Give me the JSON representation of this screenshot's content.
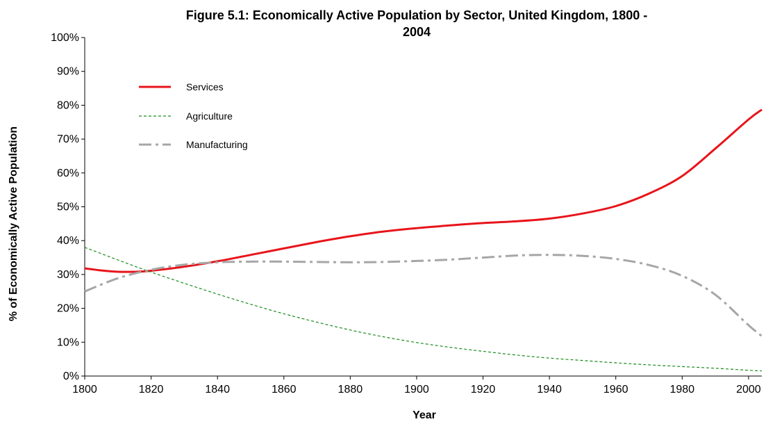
{
  "chart_data": {
    "type": "line",
    "title_line1": "Figure 5.1: Economically Active Population by Sector, United Kingdom, 1800 -",
    "title_line2": "2004",
    "xlabel": "Year",
    "ylabel": "% of Economically Active Population",
    "xlim": [
      1800,
      2004
    ],
    "ylim": [
      0,
      100
    ],
    "x_ticks": [
      1800,
      1820,
      1840,
      1860,
      1880,
      1900,
      1920,
      1940,
      1960,
      1980,
      2000
    ],
    "y_ticks": [
      0,
      10,
      20,
      30,
      40,
      50,
      60,
      70,
      80,
      90,
      100
    ],
    "y_tick_suffix": "%",
    "grid": false,
    "legend_position": "top-left",
    "series": [
      {
        "name": "Services",
        "color": "#e8141b",
        "style": "solid",
        "x": [
          1800,
          1805,
          1810,
          1815,
          1820,
          1830,
          1840,
          1850,
          1860,
          1870,
          1880,
          1890,
          1900,
          1910,
          1920,
          1930,
          1940,
          1950,
          1960,
          1970,
          1980,
          1990,
          2000,
          2004
        ],
        "y": [
          31.8,
          31.2,
          30.8,
          30.8,
          31.1,
          32.3,
          33.9,
          35.8,
          37.7,
          39.6,
          41.3,
          42.7,
          43.7,
          44.5,
          45.2,
          45.7,
          46.5,
          48.0,
          50.2,
          53.9,
          59.1,
          67.2,
          75.8,
          78.7
        ]
      },
      {
        "name": "Agriculture",
        "color": "#1a8a1a",
        "style": "dashed",
        "x": [
          1800,
          1810,
          1820,
          1830,
          1840,
          1850,
          1860,
          1870,
          1880,
          1890,
          1900,
          1910,
          1920,
          1930,
          1940,
          1950,
          1960,
          1970,
          1980,
          1990,
          2000,
          2004
        ],
        "y": [
          38.0,
          34.3,
          30.7,
          27.4,
          24.2,
          21.2,
          18.4,
          15.9,
          13.6,
          11.6,
          9.9,
          8.5,
          7.3,
          6.2,
          5.3,
          4.6,
          3.9,
          3.3,
          2.8,
          2.3,
          1.7,
          1.5
        ]
      },
      {
        "name": "Manufacturing",
        "color": "#a6a6a6",
        "style": "dashdot",
        "x": [
          1800,
          1810,
          1820,
          1830,
          1840,
          1850,
          1860,
          1870,
          1880,
          1890,
          1900,
          1910,
          1920,
          1930,
          1940,
          1950,
          1960,
          1970,
          1980,
          1990,
          2000,
          2004
        ],
        "y": [
          25.0,
          28.9,
          31.4,
          32.9,
          33.6,
          33.8,
          33.8,
          33.7,
          33.6,
          33.7,
          34.0,
          34.4,
          35.0,
          35.6,
          35.8,
          35.5,
          34.6,
          32.8,
          29.6,
          24.0,
          15.0,
          11.8
        ]
      }
    ]
  }
}
